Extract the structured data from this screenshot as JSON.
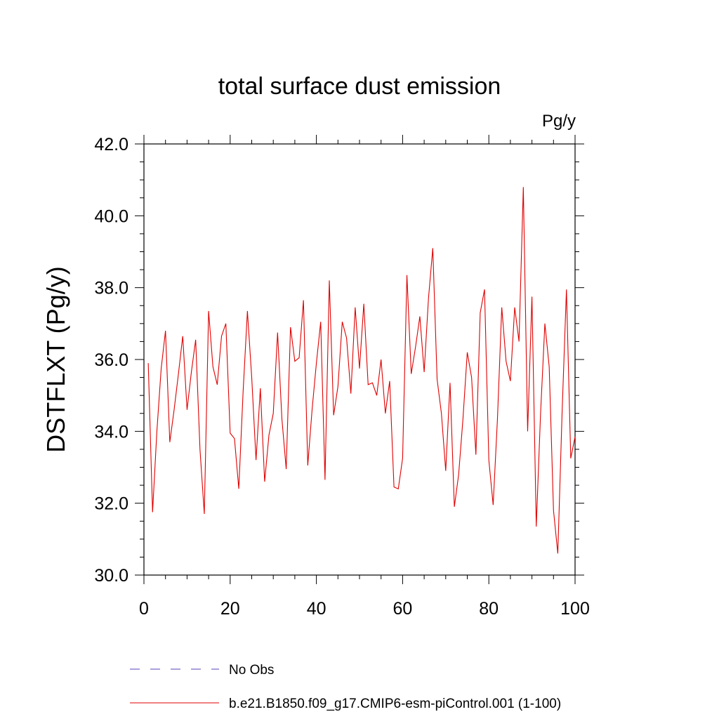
{
  "chart_data": {
    "type": "line",
    "title": "total surface dust emission",
    "units": "Pg/y",
    "ylabel": "DSTFLXT  (Pg/y)",
    "xlabel": "",
    "xlim": [
      0,
      100
    ],
    "ylim": [
      30.0,
      42.0
    ],
    "x_ticks": [
      0,
      20,
      40,
      60,
      80,
      100
    ],
    "x_tick_labels": [
      "0",
      "20",
      "40",
      "60",
      "80",
      "100"
    ],
    "y_ticks": [
      30,
      32,
      34,
      36,
      38,
      40,
      42
    ],
    "y_tick_labels": [
      "30.0",
      "32.0",
      "34.0",
      "36.0",
      "38.0",
      "40.0",
      "42.0"
    ],
    "grid": false,
    "legend_position": "bottom",
    "legend": [
      {
        "label": "No Obs",
        "color": "#7b68c8",
        "style": "dashed"
      },
      {
        "label": "b.e21.B1850.f09_g17.CMIP6-esm-piControl.001 (1-100)",
        "color": "#e00000",
        "style": "solid"
      }
    ],
    "series": [
      {
        "name": "b.e21.B1850.f09_g17.CMIP6-esm-piControl.001 (1-100)",
        "color": "#e00000",
        "x": [
          1,
          2,
          3,
          4,
          5,
          6,
          7,
          8,
          9,
          10,
          11,
          12,
          13,
          14,
          15,
          16,
          17,
          18,
          19,
          20,
          21,
          22,
          23,
          24,
          25,
          26,
          27,
          28,
          29,
          30,
          31,
          32,
          33,
          34,
          35,
          36,
          37,
          38,
          39,
          40,
          41,
          42,
          43,
          44,
          45,
          46,
          47,
          48,
          49,
          50,
          51,
          52,
          53,
          54,
          55,
          56,
          57,
          58,
          59,
          60,
          61,
          62,
          63,
          64,
          65,
          66,
          67,
          68,
          69,
          70,
          71,
          72,
          73,
          74,
          75,
          76,
          77,
          78,
          79,
          80,
          81,
          82,
          83,
          84,
          85,
          86,
          87,
          88,
          89,
          90,
          91,
          92,
          93,
          94,
          95,
          96,
          97,
          98,
          99,
          100
        ],
        "values": [
          35.9,
          31.75,
          34.0,
          35.75,
          36.8,
          33.7,
          34.6,
          35.6,
          36.65,
          34.6,
          35.65,
          36.55,
          33.5,
          31.7,
          37.35,
          35.8,
          35.3,
          36.65,
          37.0,
          33.95,
          33.8,
          32.4,
          35.1,
          37.35,
          35.5,
          33.2,
          35.2,
          32.6,
          33.9,
          34.5,
          36.75,
          34.35,
          32.95,
          36.9,
          35.95,
          36.05,
          37.65,
          33.05,
          34.6,
          35.9,
          37.05,
          32.65,
          38.2,
          34.45,
          35.25,
          37.05,
          36.6,
          35.05,
          37.45,
          35.75,
          37.55,
          35.3,
          35.35,
          35.0,
          36.0,
          34.5,
          35.4,
          32.45,
          32.4,
          33.25,
          38.35,
          35.6,
          36.35,
          37.2,
          35.65,
          37.7,
          39.1,
          35.45,
          34.5,
          32.9,
          35.35,
          31.9,
          32.8,
          34.35,
          36.2,
          35.5,
          33.35,
          37.3,
          37.95,
          33.2,
          31.95,
          34.35,
          37.45,
          35.95,
          35.4,
          37.45,
          36.5,
          40.8,
          34.0,
          37.75,
          31.35,
          34.5,
          37.0,
          35.8,
          31.8,
          30.6,
          34.55,
          37.95,
          33.25,
          33.85
        ]
      }
    ]
  }
}
